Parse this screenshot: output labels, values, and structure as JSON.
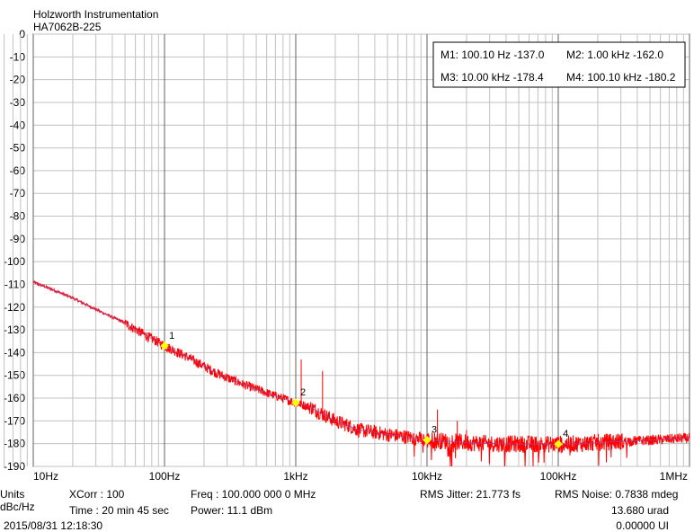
{
  "header": {
    "company": "Holzworth Instrumentation",
    "model": "HA7062B-225"
  },
  "units": {
    "label": "Units",
    "value": "dBc/Hz"
  },
  "info": {
    "xcorr": "XCorr : 100",
    "time": "Time  : 20 min 45 sec",
    "freq": "Freq   : 100.000 000 0 MHz",
    "power": "Power: 11.1 dBm",
    "rms_jitter": "RMS Jitter: 21.773 fs",
    "rms_noise": "RMS Noise: 0.7838 mdeg",
    "urad": "13.680 urad",
    "ui": "0.00000 UI",
    "timestamp": "2015/08/31 12:18:30"
  },
  "colors": {
    "trace_main": "#ff0000",
    "trace_smooth": "#a040a0",
    "marker": "#ffff00",
    "grid": "#c0c0c0",
    "grid_major": "#606060"
  },
  "chart_data": {
    "type": "line",
    "xscale": "log",
    "xlim": [
      10,
      1000000
    ],
    "ylim": [
      -190,
      0
    ],
    "grid": true,
    "xticks": [
      {
        "value": 10,
        "label": "10Hz"
      },
      {
        "value": 100,
        "label": "100Hz"
      },
      {
        "value": 1000,
        "label": "1kHz"
      },
      {
        "value": 10000,
        "label": "10kHz"
      },
      {
        "value": 100000,
        "label": "100kHz"
      },
      {
        "value": 1000000,
        "label": "1MHz"
      }
    ],
    "yticks": [
      0,
      -10,
      -20,
      -30,
      -40,
      -50,
      -60,
      -70,
      -80,
      -90,
      -100,
      -110,
      -120,
      -130,
      -140,
      -150,
      -160,
      -170,
      -180,
      -190
    ],
    "series": [
      {
        "x": [
          10,
          15,
          20,
          30,
          50,
          70,
          100,
          150,
          200,
          250,
          300,
          400,
          500,
          700,
          1000,
          1300,
          1600,
          2000,
          2500,
          3000,
          4000,
          5000,
          7000,
          10000,
          15000,
          20000,
          30000,
          50000,
          70000,
          100000,
          150000,
          200000,
          300000,
          500000,
          700000,
          1000000
        ],
        "y": [
          -109,
          -113,
          -116,
          -121,
          -127,
          -132,
          -137,
          -142,
          -146,
          -149,
          -151,
          -154,
          -156,
          -159,
          -162,
          -164,
          -167,
          -170,
          -172,
          -174,
          -175,
          -176,
          -177,
          -178.4,
          -179,
          -179.5,
          -180,
          -180.2,
          -180.2,
          -180.2,
          -180,
          -179.5,
          -179,
          -178.5,
          -178,
          -177.5
        ]
      }
    ],
    "spurs": [
      {
        "x": 1100,
        "y": -143
      },
      {
        "x": 1600,
        "y": -148
      },
      {
        "x": 12000,
        "y": -165
      },
      {
        "x": 17000,
        "y": -170
      },
      {
        "x": 20000,
        "y": -174
      }
    ],
    "markers": [
      {
        "label": "1",
        "x": 100.1,
        "y": -137.0
      },
      {
        "label": "2",
        "x": 1000,
        "y": -162.0
      },
      {
        "label": "3",
        "x": 10000,
        "y": -178.4
      },
      {
        "label": "4",
        "x": 100100,
        "y": -180.2
      }
    ],
    "marker_table": [
      {
        "name": "M1:",
        "freq": "100.10 Hz",
        "value": "-137.0"
      },
      {
        "name": "M2:",
        "freq": "1.00 kHz",
        "value": "-162.0"
      },
      {
        "name": "M3:",
        "freq": "10.00 kHz",
        "value": "-178.4"
      },
      {
        "name": "M4:",
        "freq": "100.10 kHz",
        "value": "-180.2"
      }
    ]
  }
}
